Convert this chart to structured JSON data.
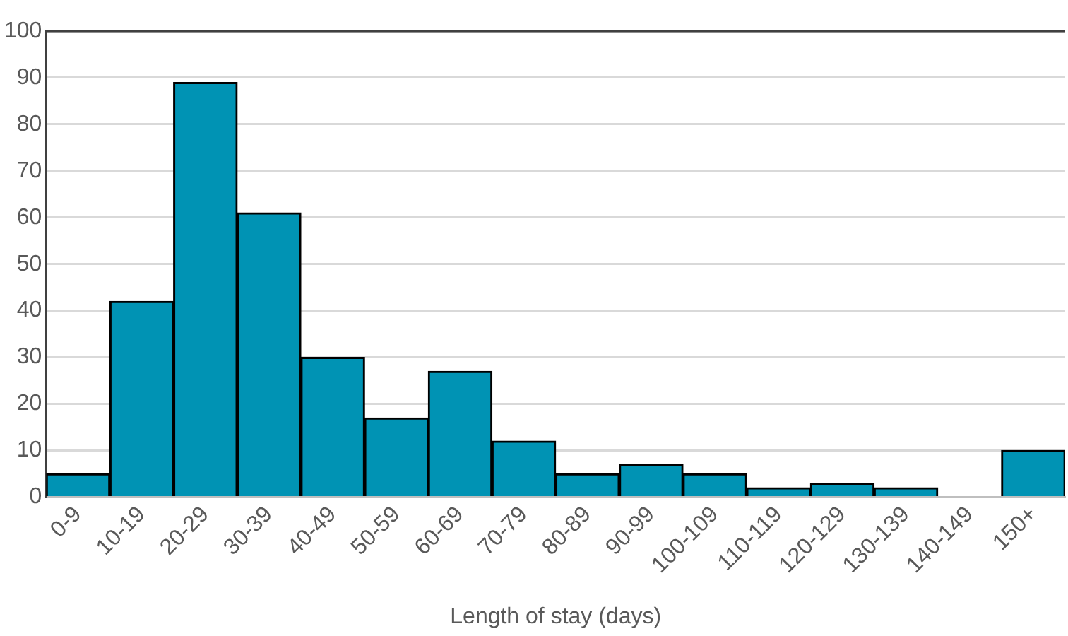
{
  "chart_data": {
    "type": "bar",
    "xlabel": "Length of stay (days)",
    "categories": [
      "0-9",
      "10-19",
      "20-29",
      "30-39",
      "40-49",
      "50-59",
      "60-69",
      "70-79",
      "80-89",
      "90-99",
      "100-109",
      "110-119",
      "120-129",
      "130-139",
      "140-149",
      "150+"
    ],
    "values": [
      5,
      42,
      89,
      61,
      30,
      17,
      27,
      12,
      5,
      7,
      5,
      2,
      3,
      2,
      0,
      10
    ],
    "color": "#0093b4",
    "ylim": [
      0,
      100
    ],
    "yticks": [
      0,
      10,
      20,
      30,
      40,
      50,
      60,
      70,
      80,
      90,
      100
    ],
    "grid": "y",
    "legend": false
  }
}
